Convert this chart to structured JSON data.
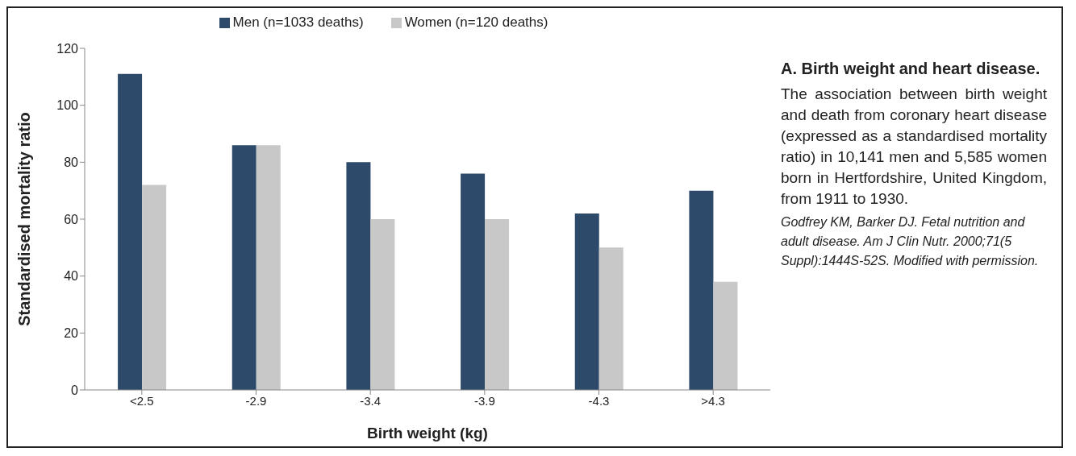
{
  "chart_data": {
    "type": "bar",
    "title": "A. Birth weight and heart disease.",
    "xlabel": "Birth weight (kg)",
    "ylabel": "Standardised mortality ratio",
    "categories": [
      "<2.5",
      "-2.9",
      "-3.4",
      "-3.9",
      "-4.3",
      ">4.3"
    ],
    "series": [
      {
        "name": "Men (n=1033 deaths)",
        "color": "#2e4a6b",
        "values": [
          111,
          86,
          80,
          76,
          62,
          70
        ]
      },
      {
        "name": "Women (n=120 deaths)",
        "color": "#c8c8c8",
        "values": [
          72,
          86,
          60,
          60,
          50,
          38
        ]
      }
    ],
    "ylim": [
      0,
      120
    ],
    "yticks": [
      0,
      20,
      40,
      60,
      80,
      100,
      120
    ],
    "legend": "top",
    "annotations": [
      "The association between birth weight and death from coronary heart disease (expressed as a standardised mortality ratio) in 10,141 men and 5,585 women born in Hertfordshire, United Kingdom, from 1911 to 1930.",
      "Godfrey KM, Barker DJ. Fetal nutrition and adult disease. Am J Clin Nutr. 2000;71(5 Suppl):1444S-52S. Modified with permission."
    ]
  }
}
